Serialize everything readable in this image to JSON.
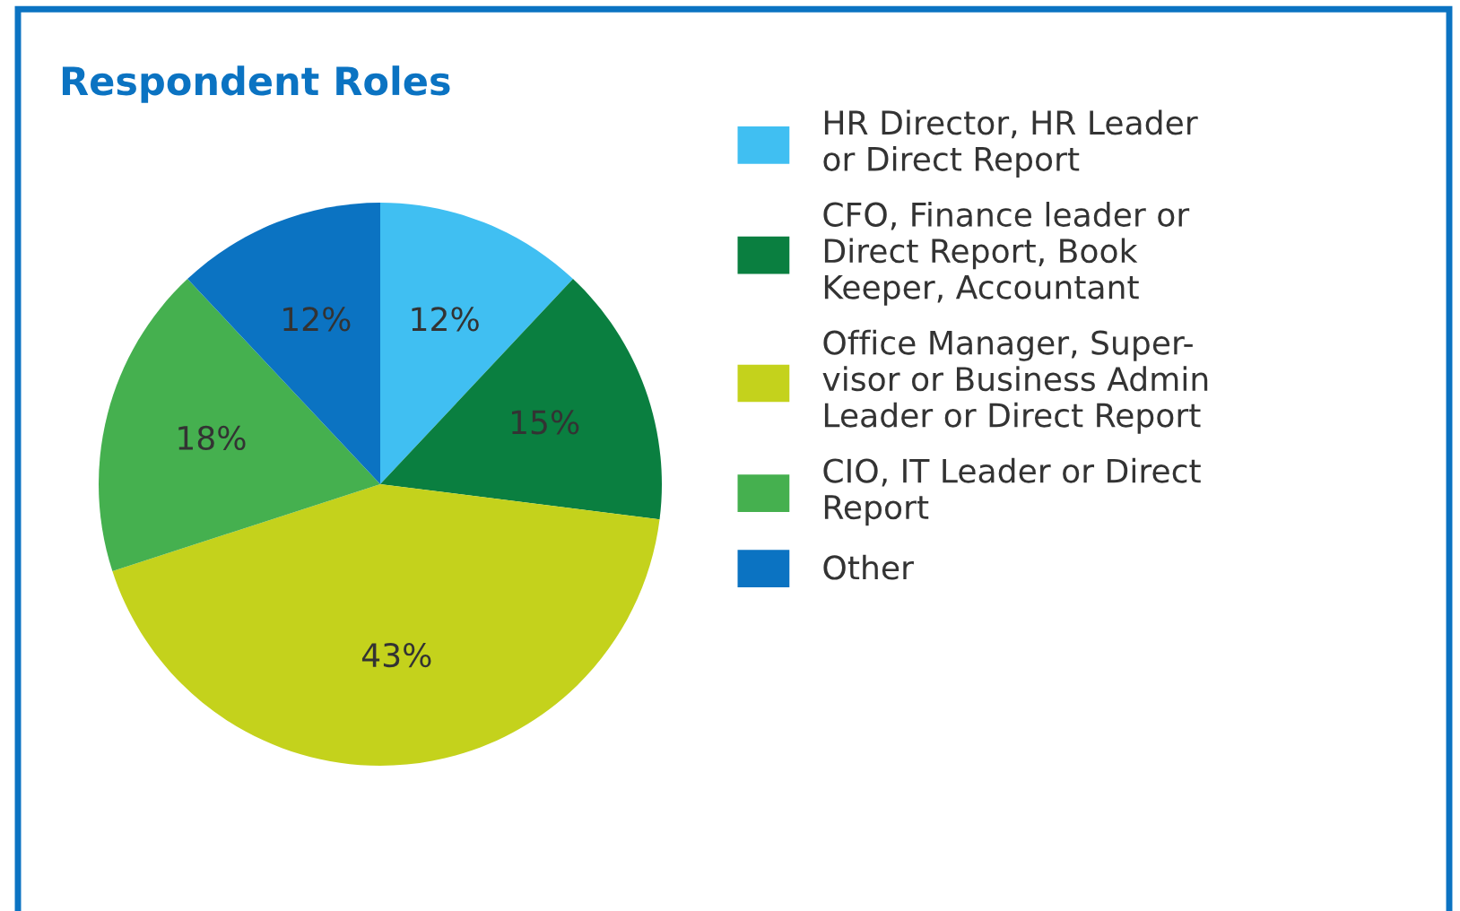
{
  "chart_data": {
    "type": "pie",
    "title": "Respondent Roles",
    "categories": [
      "HR Director, HR Leader\nor Direct Report",
      "CFO, Finance leader or\nDirect Report, Book\nKeeper, Accountant",
      "Office Manager, Super-\nvisor or Business Admin\nLeader or Direct Report",
      "CIO, IT Leader or Direct\nReport",
      "Other"
    ],
    "values": [
      12,
      15,
      43,
      18,
      12
    ],
    "value_labels": [
      "12%",
      "15%",
      "43%",
      "18%",
      "12%"
    ],
    "colors": [
      "#40bff2",
      "#0a7f40",
      "#c4d21c",
      "#45b04f",
      "#0b73c2"
    ],
    "legend": "right"
  }
}
